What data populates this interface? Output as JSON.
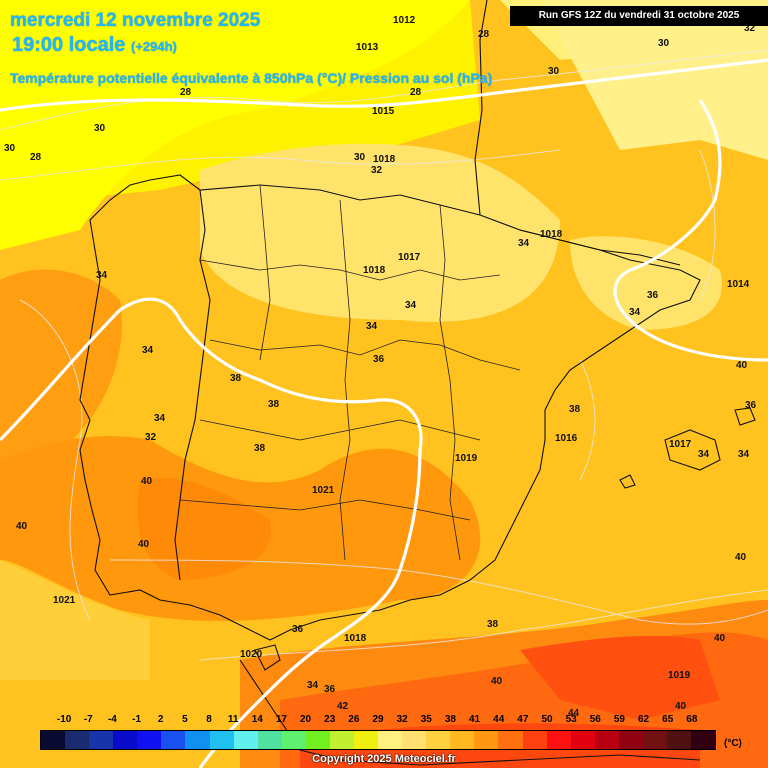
{
  "header": {
    "date": "mercredi 12 novembre 2025",
    "time": "19:00 locale",
    "lead": "(+294h)",
    "subtitle": "Température potentielle équivalente à 850hPa (°C)/ Pression au sol (hPa)",
    "run": "Run GFS 12Z du vendredi 31 octobre 2025"
  },
  "legend": {
    "ticks": [
      "-10",
      "-7",
      "-4",
      "-1",
      "2",
      "5",
      "8",
      "11",
      "14",
      "17",
      "20",
      "23",
      "26",
      "29",
      "32",
      "35",
      "38",
      "41",
      "44",
      "47",
      "50",
      "53",
      "56",
      "59",
      "62",
      "65",
      "68"
    ],
    "unit": "(°C)",
    "colors": [
      "#0a0a32",
      "#1a2a6e",
      "#1535a8",
      "#0a0aca",
      "#1010f0",
      "#1a50f0",
      "#1090f0",
      "#20c0f0",
      "#60f0f0",
      "#50e0a0",
      "#60f070",
      "#70f020",
      "#c0f030",
      "#f0f010",
      "#fff080",
      "#ffe070",
      "#ffd040",
      "#ffb820",
      "#ff9810",
      "#ff7010",
      "#ff4010",
      "#ff1010",
      "#e00010",
      "#b80010",
      "#900010",
      "#701010",
      "#501010",
      "#300010"
    ]
  },
  "map": {
    "temp_labels": [
      "28",
      "28",
      "28",
      "30",
      "30",
      "28",
      "30",
      "30",
      "30",
      "32",
      "34",
      "34",
      "34",
      "34",
      "36",
      "34",
      "34",
      "38",
      "34",
      "38",
      "32",
      "38",
      "36",
      "38",
      "40",
      "40",
      "40",
      "40",
      "36",
      "38",
      "42",
      "34",
      "36",
      "44",
      "40",
      "40",
      "40",
      "34",
      "34",
      "36",
      "40",
      "32"
    ],
    "pressure_labels": [
      "1012",
      "1013",
      "1015",
      "1018",
      "1017",
      "1018",
      "1018",
      "1014",
      "1016",
      "1017",
      "1019",
      "1021",
      "1021",
      "1018",
      "1020",
      "1019"
    ]
  },
  "copyright": "Copyright 2025 Meteociel.fr"
}
